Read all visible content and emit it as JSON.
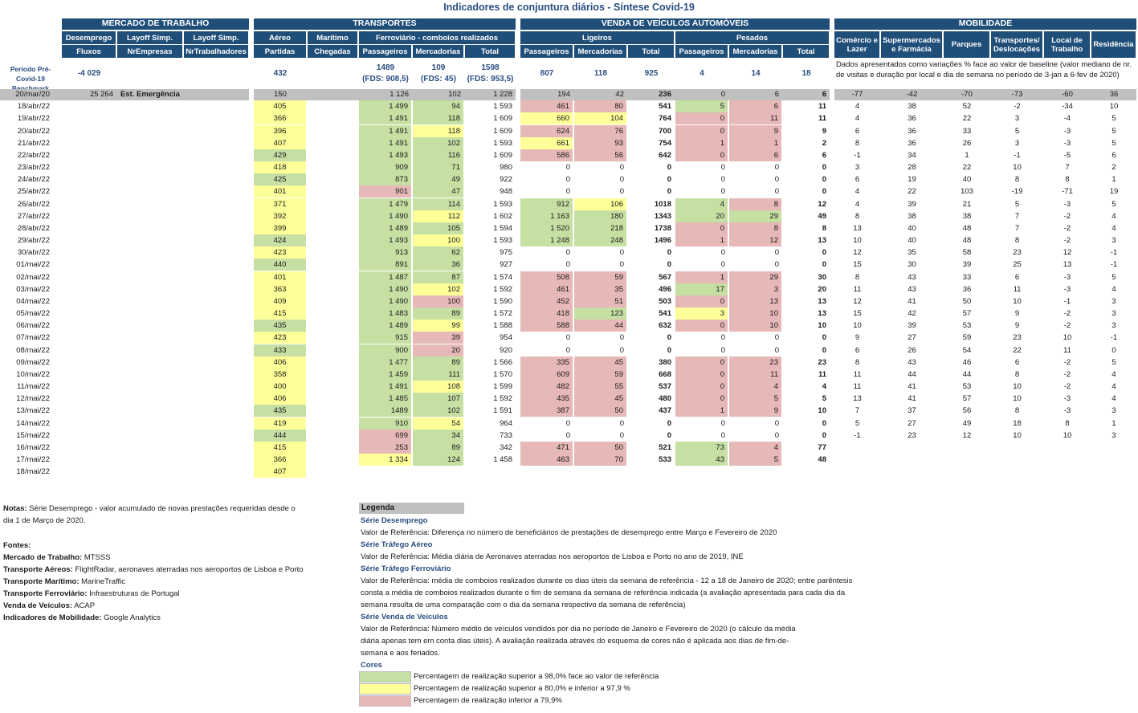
{
  "title": "Indicadores de conjuntura diários - Síntese Covid-19",
  "colors": {
    "header": "#1f4e79",
    "green": "#c6dfa3",
    "yellow": "#ffff99",
    "red": "#e6b8b7",
    "gray": "#c0c0c0"
  },
  "groups": {
    "mercado": "MERCADO DE TRABALHO",
    "transportes": "TRANSPORTES",
    "venda": "VENDA DE VEÍCULOS AUTOMÓVEIS",
    "mobilidade": "MOBILIDADE"
  },
  "subheaders": {
    "desemprego": "Desemprego",
    "layoff1": "Layoff Simp.",
    "layoff2": "Layoff Simp.",
    "aereo": "Aéreo",
    "maritimo": "Marítimo",
    "ferroviario": "Ferroviário - comboios realizados",
    "ligeiros": "Ligeiros",
    "pesados": "Pesados",
    "fluxos": "Fluxos",
    "nrempresas": "NrEmpresas",
    "nrtrab": "NrTrabalhadores",
    "partidas": "Partidas",
    "chegadas": "Chegadas",
    "f_pass": "Passageiros",
    "f_merc": "Mercadorias",
    "f_total": "Total",
    "l_pass": "Passageiros",
    "l_merc": "Mercadorias",
    "l_total": "Total",
    "p_pass": "Passageiros",
    "p_merc": "Mercadorias",
    "p_total": "Total",
    "comercio": "Comércio e Lazer",
    "supermercados": "Supermercados e Farmácia",
    "parques": "Parques",
    "transp_desl": "Transportes/ Deslocações",
    "local_trab": "Local de Trabalho",
    "residencia": "Residência"
  },
  "benchmark": {
    "label": "Período Pré-Covid-19 Benchmark",
    "fluxos": "-4 029",
    "partidas": "432",
    "f_pass": "1489",
    "f_pass_fds": "(FDS: 908,5)",
    "f_merc": "109",
    "f_merc_fds": "(FDS: 45)",
    "f_total": "1598",
    "f_total_fds": "(FDS: 953,5)",
    "l_pass": "807",
    "l_merc": "118",
    "l_total": "925",
    "p_pass": "4",
    "p_merc": "14",
    "p_total": "18",
    "mob_note": "Dados apresentados como variações % face ao valor de baseline (valor mediano de nr. de visitas e duração por local e dia de semana no período de 3-jan a 6-fev de 2020)"
  },
  "rows": [
    {
      "date": "20/mar/20",
      "fluxos": "25 264",
      "emp": "Est. Emergência",
      "part": "150",
      "fp": "1 126",
      "fm": "102",
      "ft": "1 228",
      "lp": "194",
      "lm": "42",
      "lt": "236",
      "pp": "0",
      "pm": "6",
      "pt": "6",
      "m": [
        "-77",
        "-42",
        "-70",
        "-73",
        "-60",
        "36"
      ]
    },
    {
      "date": "18/abr/22",
      "part": "405",
      "fp": "1 499",
      "fm": "94",
      "ft": "1 593",
      "lp": "461",
      "lm": "80",
      "lt": "541",
      "pp": "5",
      "pm": "6",
      "pt": "11",
      "m": [
        "4",
        "38",
        "52",
        "-2",
        "-34",
        "10"
      ],
      "c": {
        "part": "y",
        "fp": "g",
        "fm": "g",
        "lp": "r",
        "lm": "r",
        "pp": "g",
        "pm": "r"
      }
    },
    {
      "date": "19/abr/22",
      "part": "366",
      "fp": "1 491",
      "fm": "118",
      "ft": "1 609",
      "lp": "660",
      "lm": "104",
      "lt": "764",
      "pp": "0",
      "pm": "11",
      "pt": "11",
      "m": [
        "4",
        "36",
        "22",
        "3",
        "-4",
        "5"
      ],
      "c": {
        "part": "y",
        "fp": "g",
        "fm": "g",
        "lp": "y",
        "lm": "y",
        "pp": "r",
        "pm": "r"
      }
    },
    {
      "date": "20/abr/22",
      "part": "396",
      "fp": "1 491",
      "fm": "118",
      "ft": "1 609",
      "lp": "624",
      "lm": "76",
      "lt": "700",
      "pp": "0",
      "pm": "9",
      "pt": "9",
      "m": [
        "6",
        "36",
        "33",
        "5",
        "-3",
        "5"
      ],
      "c": {
        "part": "y",
        "fp": "g",
        "fm": "y",
        "lp": "r",
        "lm": "r",
        "pp": "r",
        "pm": "r"
      }
    },
    {
      "date": "21/abr/22",
      "part": "407",
      "fp": "1 491",
      "fm": "102",
      "ft": "1 593",
      "lp": "661",
      "lm": "93",
      "lt": "754",
      "pp": "1",
      "pm": "1",
      "pt": "2",
      "m": [
        "8",
        "36",
        "26",
        "3",
        "-3",
        "5"
      ],
      "c": {
        "part": "y",
        "fp": "g",
        "fm": "g",
        "lp": "y",
        "lm": "r",
        "pp": "r",
        "pm": "r"
      }
    },
    {
      "date": "22/abr/22",
      "part": "429",
      "fp": "1 493",
      "fm": "116",
      "ft": "1 609",
      "lp": "586",
      "lm": "56",
      "lt": "642",
      "pp": "0",
      "pm": "6",
      "pt": "6",
      "m": [
        "-1",
        "34",
        "1",
        "-1",
        "-5",
        "6"
      ],
      "c": {
        "part": "g",
        "fp": "g",
        "fm": "g",
        "lp": "r",
        "lm": "r",
        "pp": "r",
        "pm": "r"
      }
    },
    {
      "date": "23/abr/22",
      "part": "418",
      "fp": "909",
      "fm": "71",
      "ft": "980",
      "lp": "0",
      "lm": "0",
      "lt": "0",
      "pp": "0",
      "pm": "0",
      "pt": "0",
      "m": [
        "3",
        "28",
        "22",
        "10",
        "7",
        "2"
      ],
      "c": {
        "part": "y",
        "fp": "g",
        "fm": "g"
      }
    },
    {
      "date": "24/abr/22",
      "part": "425",
      "fp": "873",
      "fm": "49",
      "ft": "922",
      "lp": "0",
      "lm": "0",
      "lt": "0",
      "pp": "0",
      "pm": "0",
      "pt": "0",
      "m": [
        "6",
        "19",
        "40",
        "8",
        "8",
        "1"
      ],
      "c": {
        "part": "g",
        "fp": "g",
        "fm": "g"
      }
    },
    {
      "date": "25/abr/22",
      "part": "401",
      "fp": "901",
      "fm": "47",
      "ft": "948",
      "lp": "0",
      "lm": "0",
      "lt": "0",
      "pp": "0",
      "pm": "0",
      "pt": "0",
      "m": [
        "4",
        "22",
        "103",
        "-19",
        "-71",
        "19"
      ],
      "c": {
        "part": "y",
        "fp": "r",
        "fm": "g"
      }
    },
    {
      "date": "26/abr/22",
      "part": "371",
      "fp": "1 479",
      "fm": "114",
      "ft": "1 593",
      "lp": "912",
      "lm": "106",
      "lt": "1018",
      "pp": "4",
      "pm": "8",
      "pt": "12",
      "m": [
        "4",
        "39",
        "21",
        "5",
        "-3",
        "5"
      ],
      "c": {
        "part": "y",
        "fp": "g",
        "fm": "g",
        "lp": "g",
        "lm": "y",
        "pp": "g",
        "pm": "r"
      }
    },
    {
      "date": "27/abr/22",
      "part": "392",
      "fp": "1 490",
      "fm": "112",
      "ft": "1 602",
      "lp": "1 163",
      "lm": "180",
      "lt": "1343",
      "pp": "20",
      "pm": "29",
      "pt": "49",
      "m": [
        "8",
        "38",
        "38",
        "7",
        "-2",
        "4"
      ],
      "c": {
        "part": "y",
        "fp": "g",
        "fm": "y",
        "lp": "g",
        "lm": "g",
        "pp": "g",
        "pm": "g"
      }
    },
    {
      "date": "28/abr/22",
      "part": "399",
      "fp": "1 489",
      "fm": "105",
      "ft": "1 594",
      "lp": "1 520",
      "lm": "218",
      "lt": "1738",
      "pp": "0",
      "pm": "8",
      "pt": "8",
      "m": [
        "13",
        "40",
        "48",
        "7",
        "-2",
        "4"
      ],
      "c": {
        "part": "y",
        "fp": "g",
        "fm": "g",
        "lp": "g",
        "lm": "g",
        "pp": "r",
        "pm": "r"
      }
    },
    {
      "date": "29/abr/22",
      "part": "424",
      "fp": "1 493",
      "fm": "100",
      "ft": "1 593",
      "lp": "1 248",
      "lm": "248",
      "lt": "1496",
      "pp": "1",
      "pm": "12",
      "pt": "13",
      "m": [
        "10",
        "40",
        "48",
        "8",
        "-2",
        "3"
      ],
      "c": {
        "part": "g",
        "fp": "g",
        "fm": "y",
        "lp": "g",
        "lm": "g",
        "pp": "r",
        "pm": "r"
      }
    },
    {
      "date": "30/abr/22",
      "part": "423",
      "fp": "913",
      "fm": "62",
      "ft": "975",
      "lp": "0",
      "lm": "0",
      "lt": "0",
      "pp": "0",
      "pm": "0",
      "pt": "0",
      "m": [
        "12",
        "35",
        "58",
        "23",
        "12",
        "-1"
      ],
      "c": {
        "part": "y",
        "fp": "g",
        "fm": "g"
      }
    },
    {
      "date": "01/mai/22",
      "part": "440",
      "fp": "891",
      "fm": "36",
      "ft": "927",
      "lp": "0",
      "lm": "0",
      "lt": "0",
      "pp": "0",
      "pm": "0",
      "pt": "0",
      "m": [
        "15",
        "30",
        "39",
        "25",
        "13",
        "-1"
      ],
      "c": {
        "part": "g",
        "fp": "g",
        "fm": "g"
      }
    },
    {
      "date": "02/mai/22",
      "part": "401",
      "fp": "1 487",
      "fm": "87",
      "ft": "1 574",
      "lp": "508",
      "lm": "59",
      "lt": "567",
      "pp": "1",
      "pm": "29",
      "pt": "30",
      "m": [
        "8",
        "43",
        "33",
        "6",
        "-3",
        "5"
      ],
      "c": {
        "part": "y",
        "fp": "g",
        "fm": "g",
        "lp": "r",
        "lm": "r",
        "pp": "r",
        "pm": "r"
      }
    },
    {
      "date": "03/mai/22",
      "part": "363",
      "fp": "1 490",
      "fm": "102",
      "ft": "1 592",
      "lp": "461",
      "lm": "35",
      "lt": "496",
      "pp": "17",
      "pm": "3",
      "pt": "20",
      "m": [
        "11",
        "43",
        "36",
        "11",
        "-3",
        "4"
      ],
      "c": {
        "part": "y",
        "fp": "g",
        "fm": "y",
        "lp": "r",
        "lm": "r",
        "pp": "g",
        "pm": "r"
      }
    },
    {
      "date": "04/mai/22",
      "part": "409",
      "fp": "1 490",
      "fm": "100",
      "ft": "1 590",
      "lp": "452",
      "lm": "51",
      "lt": "503",
      "pp": "0",
      "pm": "13",
      "pt": "13",
      "m": [
        "12",
        "41",
        "50",
        "10",
        "-1",
        "3"
      ],
      "c": {
        "part": "y",
        "fp": "g",
        "fm": "r",
        "lp": "r",
        "lm": "r",
        "pp": "r",
        "pm": "r"
      }
    },
    {
      "date": "05/mai/22",
      "part": "415",
      "fp": "1 483",
      "fm": "89",
      "ft": "1 572",
      "lp": "418",
      "lm": "123",
      "lt": "541",
      "pp": "3",
      "pm": "10",
      "pt": "13",
      "m": [
        "15",
        "42",
        "57",
        "9",
        "-2",
        "3"
      ],
      "c": {
        "part": "y",
        "fp": "g",
        "fm": "g",
        "lp": "r",
        "lm": "g",
        "pp": "y",
        "pm": "r"
      }
    },
    {
      "date": "06/mai/22",
      "part": "435",
      "fp": "1 489",
      "fm": "99",
      "ft": "1 588",
      "lp": "588",
      "lm": "44",
      "lt": "632",
      "pp": "0",
      "pm": "10",
      "pt": "10",
      "m": [
        "10",
        "39",
        "53",
        "9",
        "-2",
        "3"
      ],
      "c": {
        "part": "g",
        "fp": "g",
        "fm": "y",
        "lp": "r",
        "lm": "r",
        "pp": "r",
        "pm": "r"
      }
    },
    {
      "date": "07/mai/22",
      "part": "423",
      "fp": "915",
      "fm": "39",
      "ft": "954",
      "lp": "0",
      "lm": "0",
      "lt": "0",
      "pp": "0",
      "pm": "0",
      "pt": "0",
      "m": [
        "9",
        "27",
        "59",
        "23",
        "10",
        "-1"
      ],
      "c": {
        "part": "y",
        "fp": "g",
        "fm": "r"
      }
    },
    {
      "date": "08/mai/22",
      "part": "433",
      "fp": "900",
      "fm": "20",
      "ft": "920",
      "lp": "0",
      "lm": "0",
      "lt": "0",
      "pp": "0",
      "pm": "0",
      "pt": "0",
      "m": [
        "6",
        "26",
        "54",
        "22",
        "11",
        "0"
      ],
      "c": {
        "part": "g",
        "fp": "g",
        "fm": "r"
      }
    },
    {
      "date": "09/mai/22",
      "part": "406",
      "fp": "1 477",
      "fm": "89",
      "ft": "1 566",
      "lp": "335",
      "lm": "45",
      "lt": "380",
      "pp": "0",
      "pm": "23",
      "pt": "23",
      "m": [
        "8",
        "43",
        "46",
        "6",
        "-2",
        "5"
      ],
      "c": {
        "part": "y",
        "fp": "g",
        "fm": "g",
        "lp": "r",
        "lm": "r",
        "pp": "r",
        "pm": "r"
      }
    },
    {
      "date": "10/mai/22",
      "part": "358",
      "fp": "1 459",
      "fm": "111",
      "ft": "1 570",
      "lp": "609",
      "lm": "59",
      "lt": "668",
      "pp": "0",
      "pm": "11",
      "pt": "11",
      "m": [
        "11",
        "44",
        "44",
        "8",
        "-2",
        "4"
      ],
      "c": {
        "part": "y",
        "fp": "g",
        "fm": "g",
        "lp": "r",
        "lm": "r",
        "pp": "r",
        "pm": "r"
      }
    },
    {
      "date": "11/mai/22",
      "part": "400",
      "fp": "1 491",
      "fm": "108",
      "ft": "1 599",
      "lp": "482",
      "lm": "55",
      "lt": "537",
      "pp": "0",
      "pm": "4",
      "pt": "4",
      "m": [
        "11",
        "41",
        "53",
        "10",
        "-2",
        "4"
      ],
      "c": {
        "part": "y",
        "fp": "g",
        "fm": "y",
        "lp": "r",
        "lm": "r",
        "pp": "r",
        "pm": "r"
      }
    },
    {
      "date": "12/mai/22",
      "part": "406",
      "fp": "1 485",
      "fm": "107",
      "ft": "1 592",
      "lp": "435",
      "lm": "45",
      "lt": "480",
      "pp": "0",
      "pm": "5",
      "pt": "5",
      "m": [
        "13",
        "41",
        "57",
        "10",
        "-3",
        "4"
      ],
      "c": {
        "part": "y",
        "fp": "g",
        "fm": "g",
        "lp": "r",
        "lm": "r",
        "pp": "r",
        "pm": "r"
      }
    },
    {
      "date": "13/mai/22",
      "part": "435",
      "fp": "1489",
      "fm": "102",
      "ft": "1 591",
      "lp": "387",
      "lm": "50",
      "lt": "437",
      "pp": "1",
      "pm": "9",
      "pt": "10",
      "m": [
        "7",
        "37",
        "56",
        "8",
        "-3",
        "3"
      ],
      "c": {
        "part": "g",
        "fp": "g",
        "fm": "g",
        "lp": "r",
        "lm": "r",
        "pp": "r",
        "pm": "r"
      }
    },
    {
      "date": "14/mai/22",
      "part": "419",
      "fp": "910",
      "fm": "54",
      "ft": "964",
      "lp": "0",
      "lm": "0",
      "lt": "0",
      "pp": "0",
      "pm": "0",
      "pt": "0",
      "m": [
        "5",
        "27",
        "49",
        "18",
        "8",
        "1"
      ],
      "c": {
        "part": "y",
        "fp": "g",
        "fm": "y"
      }
    },
    {
      "date": "15/mai/22",
      "part": "444",
      "fp": "699",
      "fm": "34",
      "ft": "733",
      "lp": "0",
      "lm": "0",
      "lt": "0",
      "pp": "0",
      "pm": "0",
      "pt": "0",
      "m": [
        "-1",
        "23",
        "12",
        "10",
        "10",
        "3"
      ],
      "c": {
        "part": "g",
        "fp": "r",
        "fm": "g"
      }
    },
    {
      "date": "16/mai/22",
      "part": "415",
      "fp": "253",
      "fm": "89",
      "ft": "342",
      "lp": "471",
      "lm": "50",
      "lt": "521",
      "pp": "73",
      "pm": "4",
      "pt": "77",
      "c": {
        "part": "y",
        "fp": "r",
        "fm": "g",
        "lp": "r",
        "lm": "r",
        "pp": "g",
        "pm": "r"
      }
    },
    {
      "date": "17/mai/22",
      "part": "366",
      "fp": "1 334",
      "fm": "124",
      "ft": "1 458",
      "lp": "463",
      "lm": "70",
      "lt": "533",
      "pp": "43",
      "pm": "5",
      "pt": "48",
      "c": {
        "part": "y",
        "fp": "y",
        "fm": "g",
        "lp": "r",
        "lm": "r",
        "pp": "g",
        "pm": "r"
      }
    },
    {
      "date": "18/mai/22",
      "part": "407",
      "c": {
        "part": "y"
      }
    }
  ],
  "notes": {
    "notas_label": "Notas:",
    "notas_text": "Série Desemprego - valor acumulado de novas prestações requeridas desde o",
    "notas_text2": "dia 1 de Março de 2020.",
    "fontes": "Fontes:",
    "src": [
      {
        "k": "Mercado de Trabalho:",
        "v": "MTSSS"
      },
      {
        "k": "Transporte Aéreos:",
        "v": "FlightRadar, aeronaves aterradas nos aeroportos de Lisboa e Porto"
      },
      {
        "k": "Transporte Marítimo:",
        "v": "MarineTraffic"
      },
      {
        "k": "Transporte Ferroviário:",
        "v": "Infraestruturas de Portugal"
      },
      {
        "k": "Venda de Veículos:",
        "v": "ACAP"
      },
      {
        "k": "Indicadores de Mobilidade:",
        "v": "Google Analytics"
      }
    ]
  },
  "legend": {
    "title": "Legenda",
    "s1": "Série Desemprego",
    "s1t": "Valor de Referência: Diferença no número de beneficiários de prestações de desemprego entre Março e Fevereiro de 2020",
    "s2": "Série Tráfego Aéreo",
    "s2t": "Valor de Referência: Média diária de Aeronaves aterradas nos aeroportos de Lisboa e Porto no ano de 2019, INE",
    "s3": "Série Tráfego Ferroviário",
    "s3t1": "Valor de Referência: média de comboios realizados durante os dias úteis da semana de referência - 12 a 18 de Janeiro de 2020; entre parêntesis",
    "s3t2": "consta a média de comboios realizados durante o fim de semana da semana de referência indicada (a avaliação apresentada para cada dia da",
    "s3t3": "semana resulta de uma comparação com o dia da semana respectivo da semana de referência)",
    "s4": "Série Venda de Veículos",
    "s4t1": "Valor de Referência: Número médio de veículos vendidos por dia no período de Janeiro e Fevereiro de 2020 (o cálculo da média",
    "s4t2": "diária apenas tem em conta dias úteis). A avaliação realizada através do esquema de cores não é aplicada aos dias de fim-de-",
    "s4t3": "semana e aos feriados.",
    "cores": "Cores",
    "c1": "Percentagem de realização superior a 98,0% face ao valor de referência",
    "c2": "Percentagem de realização superior a 80,0% e inferior a 97,9 %",
    "c3": "Percentagem de realização inferior a 79,9%"
  }
}
